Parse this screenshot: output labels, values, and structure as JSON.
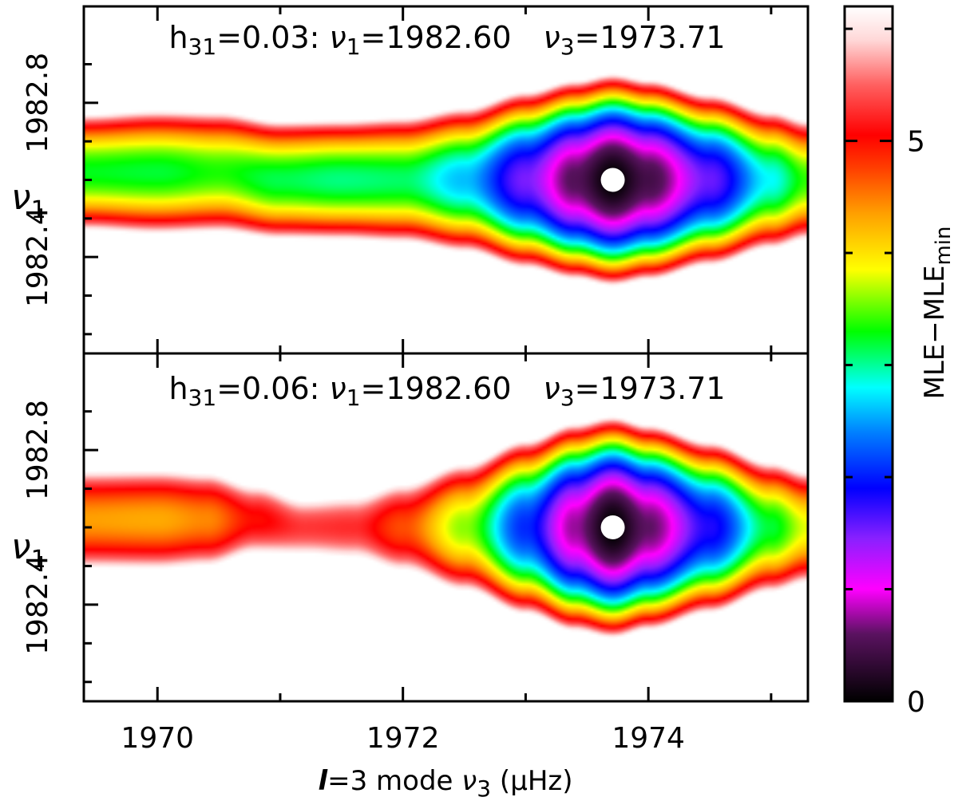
{
  "chart_data": [
    {
      "type": "heatmap",
      "panel": "top",
      "annotation": {
        "prefix": "h",
        "prefix_sub": "31",
        "h_value": "=0.03:",
        "nu1_symbol": "ν",
        "nu1_sub": "1",
        "nu1_value": "=1982.60",
        "nu3_symbol": "ν",
        "nu3_sub": "3",
        "nu3_value": "=1973.71"
      },
      "xlim": [
        1969.4,
        1975.3
      ],
      "ylim": [
        1982.15,
        1983.05
      ],
      "x_ticks_major": [
        1970,
        1972,
        1974
      ],
      "x_ticks_minor": [
        1971,
        1973,
        1975
      ],
      "y_ticks_labeled": [
        "1982.4",
        "1982.8"
      ],
      "y_ticks_major": [
        1982.4,
        1982.8
      ],
      "y_ticks_minor": [
        1982.2,
        1982.3,
        1982.5,
        1982.6,
        1982.7,
        1982.9
      ],
      "ylabel": {
        "symbol": "ν",
        "sub": "1"
      },
      "best_fit_point": {
        "x": 1973.71,
        "y": 1982.6
      },
      "model": {
        "center_nu3": 1973.71,
        "center_nu1": 1982.6,
        "nu1_curvature": 118,
        "profile_nu3": [
          1969.4,
          1970.0,
          1970.5,
          1971.0,
          1971.5,
          1972.0,
          1972.5,
          1973.0,
          1973.4,
          1973.71,
          1974.0,
          1974.5,
          1975.0,
          1975.3
        ],
        "profile_base": [
          3.25,
          3.2,
          3.35,
          3.15,
          3.05,
          3.1,
          2.6,
          1.5,
          0.55,
          0.0,
          0.45,
          1.55,
          2.8,
          3.4
        ],
        "profile_width_scale": [
          0.95,
          1.0,
          1.0,
          0.95,
          0.95,
          1.0,
          1.07,
          1.15,
          1.18,
          1.2,
          1.18,
          1.12,
          1.05,
          1.0
        ],
        "profile_center_shift": [
          0.02,
          0.02,
          0.02,
          0.0,
          0.0,
          0.0,
          0.0,
          0.0,
          0.0,
          0.0,
          0.0,
          0.0,
          0.0,
          0.0
        ]
      }
    },
    {
      "type": "heatmap",
      "panel": "bottom",
      "annotation": {
        "prefix": "h",
        "prefix_sub": "31",
        "h_value": "=0.06:",
        "nu1_symbol": "ν",
        "nu1_sub": "1",
        "nu1_value": "=1982.60",
        "nu3_symbol": "ν",
        "nu3_sub": "3",
        "nu3_value": "=1973.71"
      },
      "xlim": [
        1969.4,
        1975.3
      ],
      "ylim": [
        1982.15,
        1983.05
      ],
      "x_ticks_major": [
        1970,
        1972,
        1974
      ],
      "x_ticks_minor": [
        1971,
        1973,
        1975
      ],
      "y_ticks_labeled": [
        "1982.4",
        "1982.8"
      ],
      "y_ticks_major": [
        1982.4,
        1982.8
      ],
      "y_ticks_minor": [
        1982.2,
        1982.3,
        1982.5,
        1982.6,
        1982.7,
        1982.9
      ],
      "ylabel": {
        "symbol": "ν",
        "sub": "1"
      },
      "best_fit_point": {
        "x": 1973.71,
        "y": 1982.6
      },
      "model": {
        "center_nu3": 1973.71,
        "center_nu1": 1982.6,
        "nu1_curvature": 118,
        "profile_nu3": [
          1969.4,
          1970.0,
          1970.4,
          1970.8,
          1971.2,
          1971.6,
          1972.0,
          1972.5,
          1973.0,
          1973.4,
          1973.71,
          1974.0,
          1974.5,
          1975.0,
          1975.3
        ],
        "profile_base": [
          4.35,
          4.3,
          4.45,
          5.0,
          5.3,
          5.25,
          4.7,
          3.6,
          2.05,
          0.75,
          0.0,
          0.6,
          1.8,
          3.2,
          3.8
        ],
        "profile_width_scale": [
          1.0,
          1.0,
          0.98,
          0.85,
          0.78,
          0.85,
          0.98,
          1.1,
          1.2,
          1.25,
          1.25,
          1.22,
          1.15,
          1.05,
          1.0
        ],
        "profile_center_shift": [
          0.02,
          0.02,
          0.02,
          0.02,
          0.0,
          0.0,
          0.0,
          0.0,
          0.0,
          0.0,
          0.0,
          0.0,
          0.0,
          0.0,
          0.0
        ]
      }
    }
  ],
  "x_axis": {
    "ell": "l",
    "rest": "=3 mode ",
    "nu": "ν",
    "nu_sub": "3",
    "unit": " (μHz)"
  },
  "colorbar": {
    "range": [
      0,
      6.2
    ],
    "tick_labels": [
      {
        "value": 0,
        "label": "0"
      },
      {
        "value": 5,
        "label": "5"
      }
    ],
    "minor_ticks": [
      1,
      2,
      3,
      4,
      6
    ],
    "label_main": "MLE−MLE",
    "label_sub": "min",
    "colormap_stops": [
      {
        "v": 0.0,
        "color": "#000000"
      },
      {
        "v": 0.6,
        "color": "#5a1260"
      },
      {
        "v": 1.0,
        "color": "#ff00ff"
      },
      {
        "v": 1.45,
        "color": "#8a20ff"
      },
      {
        "v": 1.9,
        "color": "#0000ff"
      },
      {
        "v": 2.4,
        "color": "#0080ff"
      },
      {
        "v": 2.8,
        "color": "#00ffff"
      },
      {
        "v": 3.3,
        "color": "#00ff00"
      },
      {
        "v": 3.85,
        "color": "#ffff00"
      },
      {
        "v": 4.35,
        "color": "#ffa000"
      },
      {
        "v": 4.75,
        "color": "#ff4000"
      },
      {
        "v": 5.05,
        "color": "#ff0000"
      },
      {
        "v": 5.5,
        "color": "#ff6060"
      },
      {
        "v": 5.9,
        "color": "#ffd8d8"
      },
      {
        "v": 6.2,
        "color": "#ffffff"
      }
    ]
  }
}
